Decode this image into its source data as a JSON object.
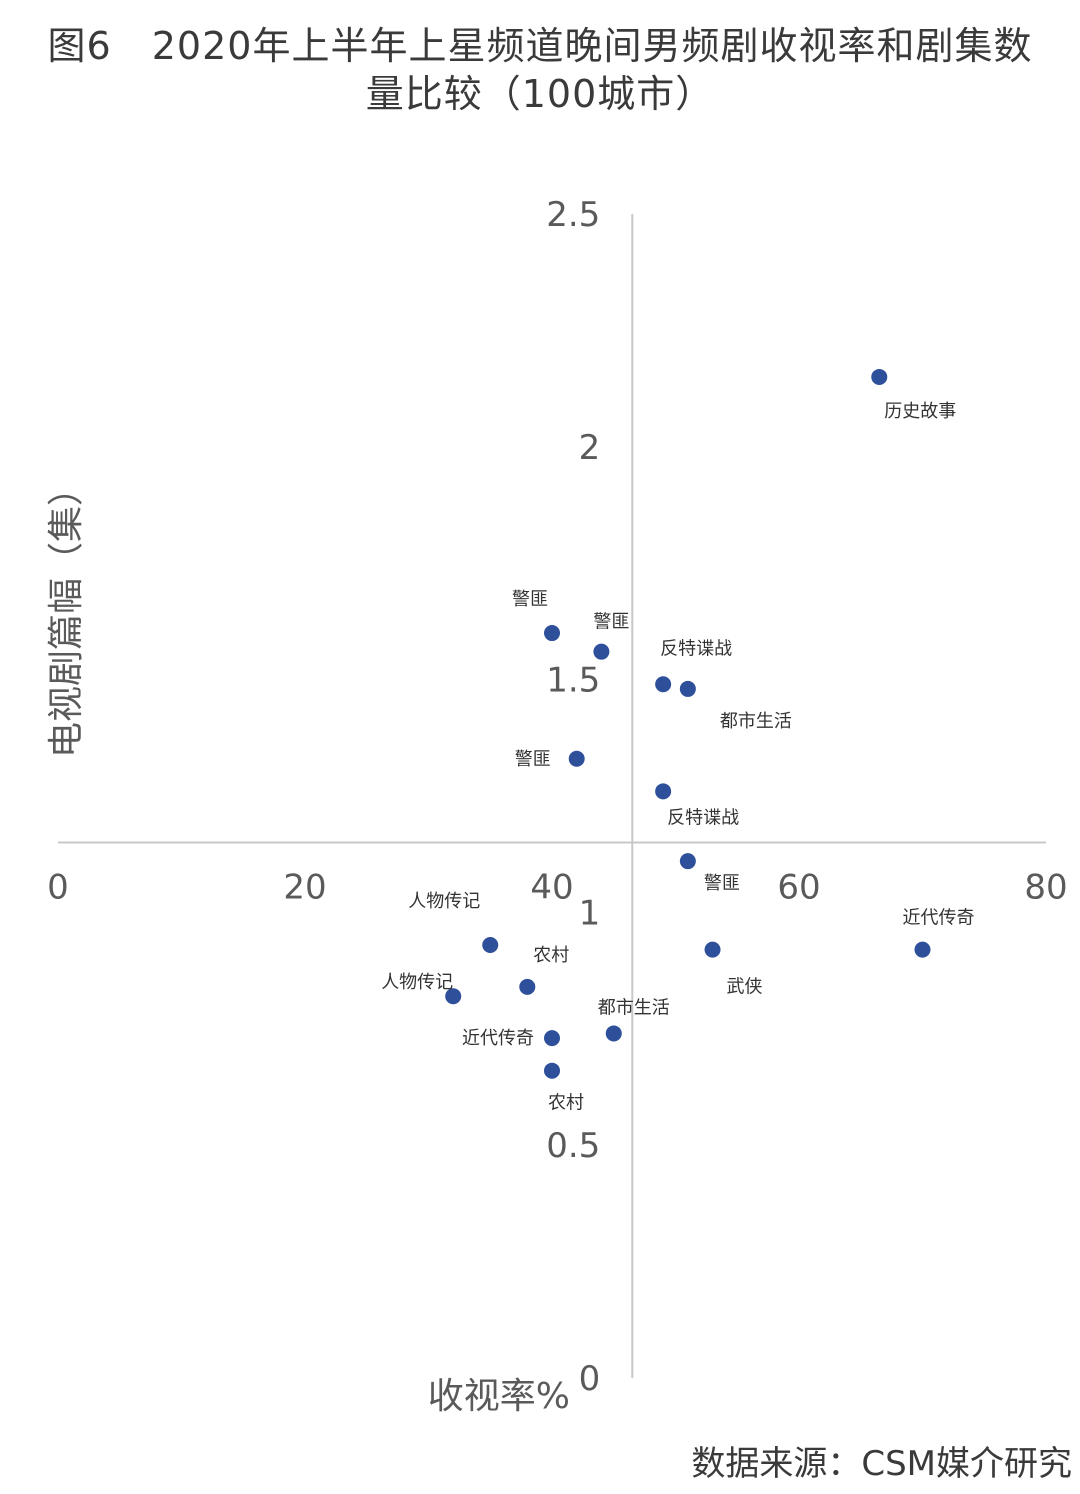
{
  "title": {
    "figure_no": "图6",
    "line1": "2020年上半年上星频道晚间男频剧收视率和剧集数",
    "line2": "量比较（100城市）"
  },
  "source": "数据来源：CSM媒介研究",
  "chart_data": {
    "type": "scatter",
    "xlabel": "收视率%",
    "ylabel": "电视剧篇幅（集）",
    "xlim": [
      0,
      80
    ],
    "ylim": [
      0,
      2.5
    ],
    "x_ticks": [
      "0",
      "20",
      "40",
      "60",
      "80"
    ],
    "y_ticks": [
      "0",
      "0.5",
      "1",
      "1.5",
      "2",
      "2.5"
    ],
    "axis_cross": {
      "x": 46.5,
      "y": 1.15
    },
    "grid": false,
    "marker_color": "#2e4f9a",
    "axis_color": "#c8c8c8",
    "points": [
      {
        "x": 66.5,
        "y": 2.15,
        "label": "历史故事"
      },
      {
        "x": 40.0,
        "y": 1.6,
        "label": "警匪"
      },
      {
        "x": 44.0,
        "y": 1.56,
        "label": "警匪"
      },
      {
        "x": 49.0,
        "y": 1.49,
        "label": "反特谍战"
      },
      {
        "x": 51.0,
        "y": 1.48,
        "label": "都市生活"
      },
      {
        "x": 42.0,
        "y": 1.33,
        "label": "警匪"
      },
      {
        "x": 49.0,
        "y": 1.26,
        "label": "反特谍战"
      },
      {
        "x": 51.0,
        "y": 1.11,
        "label": "警匪"
      },
      {
        "x": 35.0,
        "y": 0.93,
        "label": "人物传记"
      },
      {
        "x": 53.0,
        "y": 0.92,
        "label": "武侠"
      },
      {
        "x": 70.0,
        "y": 0.92,
        "label": "近代传奇"
      },
      {
        "x": 38.0,
        "y": 0.84,
        "label": "农村"
      },
      {
        "x": 32.0,
        "y": 0.82,
        "label": "人物传记"
      },
      {
        "x": 45.0,
        "y": 0.74,
        "label": "都市生活"
      },
      {
        "x": 40.0,
        "y": 0.73,
        "label": "近代传奇"
      },
      {
        "x": 40.0,
        "y": 0.66,
        "label": "农村"
      }
    ]
  }
}
